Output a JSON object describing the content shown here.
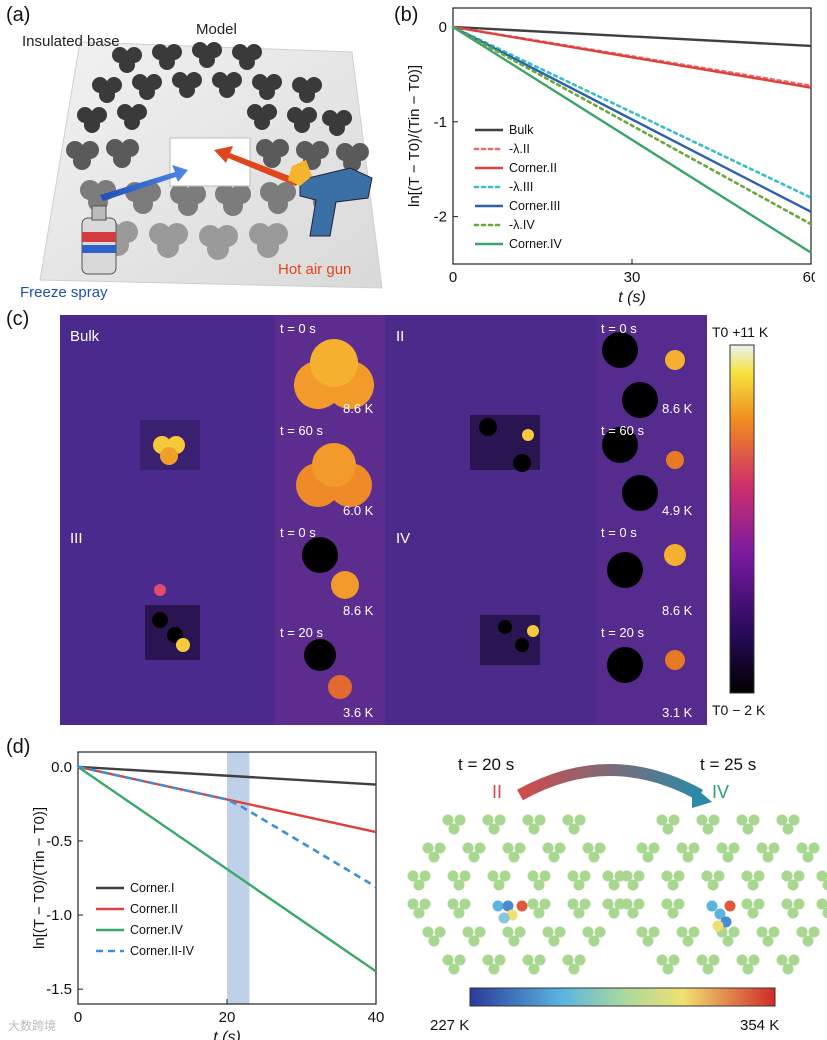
{
  "panel_labels": {
    "a": "(a)",
    "b": "(b)",
    "c": "(c)",
    "d": "(d)"
  },
  "panel_a": {
    "insulated_base": "Insulated base",
    "model": "Model",
    "freeze_spray": "Freeze spray",
    "hot_air_gun": "Hot air gun",
    "colors": {
      "freeze": "#1f4fb5",
      "hot": "#e0461d"
    }
  },
  "panel_b": {
    "xlabel": "t (s)",
    "ylabel": "ln[(T − T0)/(Tin − T0)]",
    "xticks": [
      "0",
      "30",
      "60"
    ],
    "yticks": [
      "0",
      "-1",
      "-2"
    ],
    "legend": [
      "Bulk",
      "-λ.II",
      "Corner.II",
      "-λ.III",
      "Corner.III",
      "-λ.IV",
      "Corner.IV"
    ]
  },
  "panel_c": {
    "colorbar_top": "T0 +11 K",
    "colorbar_bottom": "T0 − 2 K",
    "quadrants": [
      {
        "label": "Bulk",
        "t1": "t = 0 s",
        "v1": "8.6 K",
        "t2": "t = 60 s",
        "v2": "6.0 K"
      },
      {
        "label": "II",
        "t1": "t = 0 s",
        "v1": "8.6 K",
        "t2": "t = 60 s",
        "v2": "4.9 K"
      },
      {
        "label": "III",
        "t1": "t = 0 s",
        "v1": "8.6 K",
        "t2": "t = 20 s",
        "v2": "3.6 K"
      },
      {
        "label": "IV",
        "t1": "t = 0 s",
        "v1": "8.6 K",
        "t2": "t = 20 s",
        "v2": "3.1 K"
      }
    ]
  },
  "panel_d": {
    "xlabel": "t (s)",
    "ylabel": "ln[(T − T0)/(Tin − T0)]",
    "xticks": [
      "0",
      "20",
      "40"
    ],
    "yticks": [
      "0.0",
      "-0.5",
      "-1.0",
      "-1.5"
    ],
    "legend": [
      "Corner.I",
      "Corner.II",
      "Corner.IV",
      "Corner.II-IV"
    ],
    "time_left": "t = 20 s",
    "time_right": "t = 25 s",
    "phase_left": "II",
    "phase_right": "IV",
    "colorbar_min": "227 K",
    "colorbar_max": "354 K"
  },
  "watermark": "大数跨境",
  "chart_data": [
    {
      "type": "line",
      "title": "(b)",
      "xlabel": "t (s)",
      "ylabel": "ln[(T-T0)/(Tin-T0)]",
      "xlim": [
        0,
        60
      ],
      "ylim": [
        -2.5,
        0.2
      ],
      "series": [
        {
          "name": "Bulk",
          "x": [
            0,
            60
          ],
          "values": [
            0,
            -0.2
          ],
          "color": "#404040",
          "style": "solid"
        },
        {
          "name": "-λ.II",
          "x": [
            0,
            60
          ],
          "values": [
            0,
            -0.62
          ],
          "color": "#e96a6a",
          "style": "dotted"
        },
        {
          "name": "Corner.II",
          "x": [
            0,
            60
          ],
          "values": [
            0,
            -0.64
          ],
          "color": "#e0403a",
          "style": "solid"
        },
        {
          "name": "-λ.III",
          "x": [
            0,
            60
          ],
          "values": [
            0,
            -1.8
          ],
          "color": "#3bbfc4",
          "style": "dotted"
        },
        {
          "name": "Corner.III",
          "x": [
            0,
            60
          ],
          "values": [
            0,
            -1.95
          ],
          "color": "#2d5fb0",
          "style": "solid"
        },
        {
          "name": "-λ.IV",
          "x": [
            0,
            60
          ],
          "values": [
            0,
            -2.08
          ],
          "color": "#6aa83a",
          "style": "dotted"
        },
        {
          "name": "Corner.IV",
          "x": [
            0,
            60
          ],
          "values": [
            0,
            -2.38
          ],
          "color": "#3aa36a",
          "style": "solid"
        }
      ]
    },
    {
      "type": "line",
      "title": "(d)",
      "xlabel": "t (s)",
      "ylabel": "ln[(T-T0)/(Tin-T0)]",
      "xlim": [
        0,
        40
      ],
      "ylim": [
        -1.6,
        0.1
      ],
      "highlight_x": [
        20,
        23
      ],
      "series": [
        {
          "name": "Corner.I",
          "x": [
            0,
            40
          ],
          "values": [
            0,
            -0.12
          ],
          "color": "#404040",
          "style": "solid"
        },
        {
          "name": "Corner.II",
          "x": [
            0,
            40
          ],
          "values": [
            0,
            -0.44
          ],
          "color": "#e0403a",
          "style": "solid"
        },
        {
          "name": "Corner.IV",
          "x": [
            0,
            40
          ],
          "values": [
            0,
            -1.38
          ],
          "color": "#3aa86a",
          "style": "solid"
        },
        {
          "name": "Corner.II-IV",
          "x": [
            0,
            20,
            22,
            40
          ],
          "values": [
            0,
            -0.22,
            -0.27,
            -0.81
          ],
          "color": "#3a8fd8",
          "style": "dashed"
        }
      ]
    }
  ]
}
